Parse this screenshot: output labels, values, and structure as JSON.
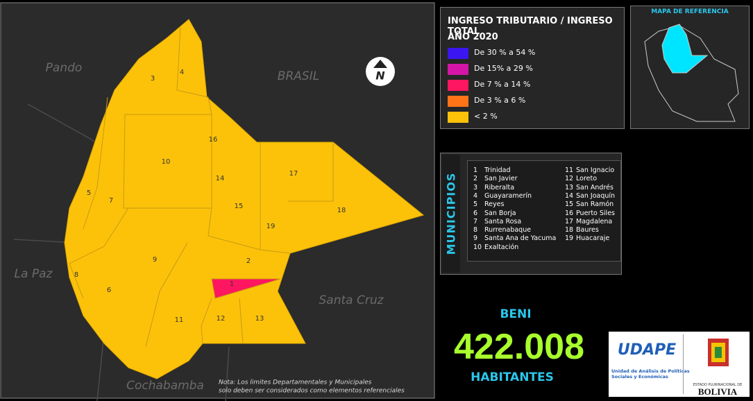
{
  "map": {
    "neighbors": {
      "pando": "Pando",
      "brasil": "BRASIL",
      "lapaz": "La Paz",
      "santacruz": "Santa Cruz",
      "cochabamba": "Cochabamba"
    },
    "note": [
      "Nota: Los limites Departamentales y Municipales",
      "solo deben ser considerados como elementos referenciales"
    ],
    "north": "N"
  },
  "legend": {
    "title": "INGRESO TRIBUTARIO / INGRESO TOTAL",
    "year": "AÑO 2020",
    "items": [
      {
        "label": "De 30 % a 54 %",
        "color": "#3b16f2"
      },
      {
        "label": "De 15% a 29 %",
        "color": "#d515a6"
      },
      {
        "label": "De 7 % a 14 %",
        "color": "#ff1660"
      },
      {
        "label": "De 3 % a 6 %",
        "color": "#ff7417"
      },
      {
        "label": "< 2 %",
        "color": "#fcc20a"
      }
    ]
  },
  "reference": {
    "title": "MAPA DE REFERENCIA"
  },
  "municipios": {
    "title": "MUNICIPIOS",
    "items": [
      {
        "number": 1,
        "name": "Trinidad"
      },
      {
        "number": 2,
        "name": "San Javier"
      },
      {
        "number": 3,
        "name": "Riberalta"
      },
      {
        "number": 4,
        "name": "Guayaramerín"
      },
      {
        "number": 5,
        "name": "Reyes"
      },
      {
        "number": 6,
        "name": "San Borja"
      },
      {
        "number": 7,
        "name": "Santa Rosa"
      },
      {
        "number": 8,
        "name": "Rurrenabaque"
      },
      {
        "number": 9,
        "name": "Santa Ana de Yacuma"
      },
      {
        "number": 10,
        "name": "Exaltación"
      },
      {
        "number": 11,
        "name": "San Ignacio"
      },
      {
        "number": 12,
        "name": "Loreto"
      },
      {
        "number": 13,
        "name": "San Andrés"
      },
      {
        "number": 14,
        "name": "San Joaquín"
      },
      {
        "number": 15,
        "name": "San Ramón"
      },
      {
        "number": 16,
        "name": "Puerto Siles"
      },
      {
        "number": 17,
        "name": "Magdalena"
      },
      {
        "number": 18,
        "name": "Baures"
      },
      {
        "number": 19,
        "name": "Huacaraje"
      }
    ]
  },
  "summary": {
    "department": "BENI",
    "population": "422.008",
    "unit": "HABITANTES"
  },
  "logos": {
    "udape": "UDAPE",
    "udape_sub": [
      "Unidad de Análisis de Políticas",
      "Sociales y Económicas"
    ],
    "state": "ESTADO PLURINACIONAL DE",
    "country": "BOLIVIA"
  }
}
